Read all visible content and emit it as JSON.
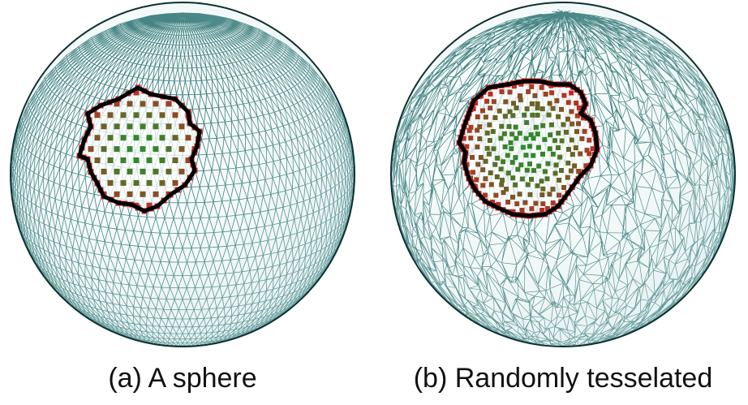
{
  "figure": {
    "panels": [
      {
        "caption": "(a) A sphere",
        "mesh": "regular"
      },
      {
        "caption": "(b) Randomly tesselated",
        "mesh": "random"
      }
    ],
    "colors": {
      "mesh": "#1f6b6b",
      "boundary": "#000000",
      "patch_inner": "#2e8b2e",
      "patch_edge": "#cc2222"
    }
  }
}
